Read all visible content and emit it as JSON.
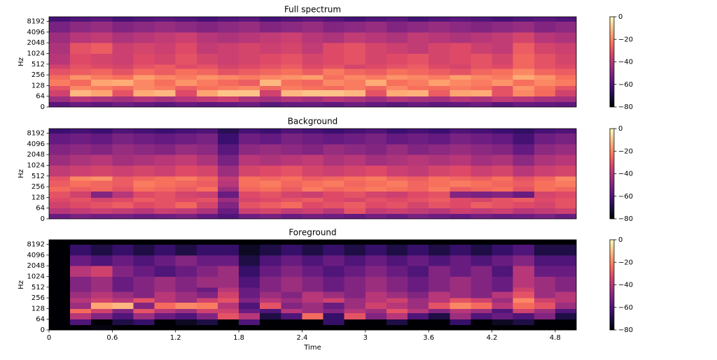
{
  "chart_data": [
    {
      "type": "heatmap",
      "title": "Full spectrum",
      "ylabel": "Hz",
      "yscale": "symlog",
      "colormap": "magma",
      "time_bins": [
        0,
        0.2,
        0.4,
        0.6,
        0.8,
        1.0,
        1.2,
        1.4,
        1.6,
        1.8,
        2.0,
        2.2,
        2.4,
        2.6,
        2.8,
        3.0,
        3.2,
        3.4,
        3.6,
        3.8,
        4.0,
        4.2,
        4.4,
        4.6,
        4.8,
        5.0
      ],
      "freq_bins": [
        0,
        32,
        64,
        96,
        128,
        192,
        256,
        384,
        512,
        1024,
        2048,
        4096,
        8192,
        11025
      ],
      "z": [
        [
          -58,
          -55,
          -57,
          -54,
          -56,
          -58,
          -55,
          -57,
          -56,
          -54,
          -58,
          -56,
          -55,
          -57,
          -54,
          -56,
          -58,
          -55,
          -57,
          -56,
          -54,
          -58,
          -55,
          -56,
          -57
        ],
        [
          -45,
          -40,
          -42,
          -44,
          -41,
          -43,
          -40,
          -38,
          -36,
          -42,
          -44,
          -41,
          -43,
          -40,
          -42,
          -45,
          -41,
          -43,
          -44,
          -40,
          -42,
          -38,
          -40,
          -43,
          -44
        ],
        [
          -35,
          -12,
          -15,
          -30,
          -14,
          -12,
          -32,
          -15,
          -10,
          -10,
          -35,
          -12,
          -10,
          -10,
          -12,
          -30,
          -14,
          -13,
          -28,
          -15,
          -14,
          -30,
          -20,
          -25,
          -35
        ],
        [
          -30,
          -20,
          -22,
          -25,
          -20,
          -22,
          -28,
          -24,
          -22,
          -20,
          -26,
          -22,
          -24,
          -25,
          -22,
          -26,
          -20,
          -24,
          -25,
          -22,
          -24,
          -30,
          -18,
          -24,
          -30
        ],
        [
          -22,
          -25,
          -15,
          -14,
          -20,
          -24,
          -18,
          -22,
          -25,
          -28,
          -12,
          -24,
          -26,
          -20,
          -22,
          -14,
          -24,
          -22,
          -16,
          -20,
          -22,
          -18,
          -24,
          -20,
          -22
        ],
        [
          -25,
          -18,
          -22,
          -24,
          -16,
          -20,
          -22,
          -18,
          -20,
          -22,
          -20,
          -18,
          -16,
          -24,
          -20,
          -22,
          -18,
          -20,
          -22,
          -16,
          -20,
          -22,
          -14,
          -18,
          -24
        ],
        [
          -30,
          -28,
          -26,
          -30,
          -25,
          -28,
          -24,
          -26,
          -30,
          -28,
          -26,
          -24,
          -28,
          -22,
          -26,
          -28,
          -24,
          -26,
          -28,
          -30,
          -26,
          -24,
          -20,
          -26,
          -28
        ],
        [
          -35,
          -30,
          -32,
          -34,
          -30,
          -28,
          -32,
          -30,
          -34,
          -32,
          -30,
          -28,
          -32,
          -30,
          -34,
          -32,
          -30,
          -28,
          -32,
          -34,
          -30,
          -32,
          -26,
          -30,
          -32
        ],
        [
          -40,
          -32,
          -34,
          -36,
          -32,
          -34,
          -30,
          -34,
          -36,
          -34,
          -32,
          -30,
          -34,
          -32,
          -30,
          -34,
          -32,
          -30,
          -34,
          -32,
          -30,
          -34,
          -26,
          -30,
          -34
        ],
        [
          -42,
          -30,
          -28,
          -36,
          -34,
          -36,
          -32,
          -38,
          -36,
          -34,
          -36,
          -34,
          -38,
          -32,
          -30,
          -34,
          -36,
          -38,
          -34,
          -32,
          -36,
          -38,
          -28,
          -34,
          -36
        ],
        [
          -45,
          -40,
          -38,
          -42,
          -40,
          -38,
          -36,
          -40,
          -42,
          -40,
          -38,
          -36,
          -40,
          -42,
          -38,
          -40,
          -42,
          -38,
          -40,
          -42,
          -40,
          -38,
          -34,
          -40,
          -42
        ],
        [
          -52,
          -48,
          -46,
          -50,
          -48,
          -46,
          -48,
          -50,
          -48,
          -46,
          -50,
          -48,
          -46,
          -50,
          -48,
          -46,
          -50,
          -48,
          -46,
          -48,
          -50,
          -48,
          -46,
          -50,
          -48
        ],
        [
          -62,
          -60,
          -58,
          -62,
          -60,
          -58,
          -60,
          -62,
          -60,
          -58,
          -62,
          -60,
          -58,
          -60,
          -62,
          -60,
          -58,
          -62,
          -60,
          -58,
          -60,
          -62,
          -60,
          -58,
          -60
        ]
      ],
      "xlim": [
        0,
        5.0
      ],
      "ylim": [
        0,
        11025
      ],
      "yticks": [
        0,
        64,
        128,
        256,
        512,
        1024,
        2048,
        4096,
        8192
      ],
      "clim": [
        -80,
        0
      ],
      "colorbar_ticks": [
        0,
        {
          "value": -20,
          "label": "−20"
        },
        {
          "value": -40,
          "label": "−40"
        },
        {
          "value": -60,
          "label": "−60"
        },
        {
          "value": -80,
          "label": "−80"
        }
      ]
    },
    {
      "type": "heatmap",
      "title": "Background",
      "ylabel": "Hz",
      "yscale": "symlog",
      "colormap": "magma",
      "time_bins": [
        0,
        0.2,
        0.4,
        0.6,
        0.8,
        1.0,
        1.2,
        1.4,
        1.6,
        1.8,
        2.0,
        2.2,
        2.4,
        2.6,
        2.8,
        3.0,
        3.2,
        3.4,
        3.6,
        3.8,
        4.0,
        4.2,
        4.4,
        4.6,
        4.8,
        5.0
      ],
      "freq_bins": [
        0,
        32,
        64,
        96,
        128,
        192,
        256,
        384,
        512,
        1024,
        2048,
        4096,
        8192,
        11025
      ],
      "z": [
        [
          -55,
          -52,
          -54,
          -53,
          -55,
          -54,
          -52,
          -56,
          -60,
          -54,
          -52,
          -55,
          -53,
          -54,
          -56,
          -53,
          -55,
          -52,
          -54,
          -56,
          -53,
          -55,
          -54,
          -52,
          -55
        ],
        [
          -40,
          -38,
          -36,
          -38,
          -40,
          -36,
          -38,
          -42,
          -55,
          -36,
          -34,
          -38,
          -36,
          -40,
          -30,
          -38,
          -36,
          -38,
          -40,
          -36,
          -38,
          -36,
          -40,
          -38,
          -36
        ],
        [
          -35,
          -32,
          -30,
          -28,
          -32,
          -30,
          -26,
          -34,
          -50,
          -30,
          -28,
          -25,
          -32,
          -30,
          -28,
          -32,
          -30,
          -34,
          -30,
          -32,
          -28,
          -30,
          -32,
          -34,
          -30
        ],
        [
          -32,
          -30,
          -34,
          -32,
          -28,
          -30,
          -32,
          -30,
          -45,
          -34,
          -32,
          -30,
          -28,
          -32,
          -34,
          -30,
          -32,
          -30,
          -28,
          -32,
          -34,
          -30,
          -28,
          -32,
          -30
        ],
        [
          -30,
          -35,
          -50,
          -40,
          -32,
          -30,
          -34,
          -36,
          -55,
          -32,
          -30,
          -34,
          -36,
          -32,
          -30,
          -34,
          -36,
          -32,
          -30,
          -50,
          -52,
          -50,
          -55,
          -34,
          -32
        ],
        [
          -25,
          -28,
          -26,
          -30,
          -24,
          -26,
          -28,
          -24,
          -45,
          -26,
          -24,
          -28,
          -22,
          -26,
          -24,
          -22,
          -24,
          -26,
          -22,
          -28,
          -26,
          -24,
          -30,
          -24,
          -26
        ],
        [
          -28,
          -24,
          -26,
          -28,
          -22,
          -24,
          -26,
          -28,
          -40,
          -24,
          -22,
          -26,
          -24,
          -22,
          -26,
          -24,
          -22,
          -26,
          -24,
          -22,
          -24,
          -26,
          -28,
          -24,
          -22
        ],
        [
          -30,
          -20,
          -18,
          -28,
          -26,
          -24,
          -22,
          -26,
          -38,
          -24,
          -26,
          -24,
          -28,
          -26,
          -24,
          -22,
          -26,
          -28,
          -24,
          -26,
          -28,
          -24,
          -30,
          -26,
          -20
        ],
        [
          -38,
          -36,
          -34,
          -36,
          -34,
          -36,
          -32,
          -34,
          -45,
          -34,
          -32,
          -30,
          -34,
          -36,
          -34,
          -32,
          -36,
          -38,
          -34,
          -32,
          -36,
          -34,
          -40,
          -36,
          -34
        ],
        [
          -45,
          -42,
          -40,
          -44,
          -42,
          -40,
          -38,
          -42,
          -52,
          -40,
          -42,
          -40,
          -38,
          -42,
          -40,
          -44,
          -42,
          -40,
          -42,
          -40,
          -44,
          -42,
          -48,
          -42,
          -40
        ],
        [
          -50,
          -48,
          -50,
          -46,
          -48,
          -50,
          -46,
          -48,
          -58,
          -48,
          -46,
          -48,
          -50,
          -46,
          -48,
          -50,
          -46,
          -50,
          -48,
          -46,
          -48,
          -50,
          -56,
          -48,
          -46
        ],
        [
          -56,
          -54,
          -56,
          -52,
          -54,
          -56,
          -54,
          -52,
          -64,
          -54,
          -56,
          -52,
          -54,
          -56,
          -54,
          -52,
          -56,
          -54,
          -56,
          -52,
          -54,
          -56,
          -62,
          -54,
          -52
        ],
        [
          -64,
          -62,
          -64,
          -60,
          -62,
          -64,
          -62,
          -60,
          -68,
          -62,
          -64,
          -60,
          -62,
          -64,
          -62,
          -60,
          -64,
          -62,
          -64,
          -60,
          -62,
          -64,
          -66,
          -62,
          -60
        ]
      ],
      "xlim": [
        0,
        5.0
      ],
      "ylim": [
        0,
        11025
      ],
      "yticks": [
        0,
        64,
        128,
        256,
        512,
        1024,
        2048,
        4096,
        8192
      ],
      "clim": [
        -80,
        0
      ],
      "colorbar_ticks": [
        0,
        {
          "value": -20,
          "label": "−20"
        },
        {
          "value": -40,
          "label": "−40"
        },
        {
          "value": -60,
          "label": "−60"
        },
        {
          "value": -80,
          "label": "−80"
        }
      ]
    },
    {
      "type": "heatmap",
      "title": "Foreground",
      "ylabel": "Hz",
      "xlabel": "Time",
      "yscale": "symlog",
      "colormap": "magma",
      "time_bins": [
        0,
        0.2,
        0.4,
        0.6,
        0.8,
        1.0,
        1.2,
        1.4,
        1.6,
        1.8,
        2.0,
        2.2,
        2.4,
        2.6,
        2.8,
        3.0,
        3.2,
        3.4,
        3.6,
        3.8,
        4.0,
        4.2,
        4.4,
        4.6,
        4.8,
        5.0
      ],
      "freq_bins": [
        0,
        32,
        64,
        96,
        128,
        192,
        256,
        384,
        512,
        1024,
        2048,
        4096,
        8192,
        11025
      ],
      "z": [
        [
          -80,
          -80,
          -78,
          -80,
          -80,
          -80,
          -80,
          -80,
          -80,
          -80,
          -80,
          -80,
          -80,
          -80,
          -80,
          -80,
          -80,
          -80,
          -80,
          -80,
          -80,
          -80,
          -80,
          -80,
          -80
        ],
        [
          -80,
          -60,
          -80,
          -70,
          -65,
          -80,
          -75,
          -70,
          -80,
          -60,
          -80,
          -80,
          -80,
          -65,
          -80,
          -80,
          -70,
          -80,
          -80,
          -65,
          -80,
          -75,
          -70,
          -80,
          -80
        ],
        [
          -80,
          -40,
          -50,
          -60,
          -45,
          -55,
          -60,
          -50,
          -30,
          -40,
          -70,
          -60,
          -25,
          -65,
          -30,
          -50,
          -40,
          -60,
          -70,
          -45,
          -60,
          -55,
          -60,
          -50,
          -70
        ],
        [
          -80,
          -25,
          -35,
          -50,
          -30,
          -40,
          -45,
          -35,
          -35,
          -55,
          -60,
          -40,
          -45,
          -50,
          -40,
          -45,
          -30,
          -40,
          -50,
          -40,
          -45,
          -60,
          -35,
          -45,
          -60
        ],
        [
          -80,
          -45,
          -15,
          -12,
          -50,
          -25,
          -20,
          -22,
          -40,
          -60,
          -30,
          -50,
          -45,
          -55,
          -45,
          -35,
          -40,
          -45,
          -30,
          -20,
          -25,
          -40,
          -25,
          -30,
          -45
        ],
        [
          -80,
          -40,
          -35,
          -40,
          -30,
          -40,
          -45,
          -35,
          -30,
          -50,
          -40,
          -45,
          -40,
          -35,
          -45,
          -40,
          -35,
          -45,
          -40,
          -30,
          -35,
          -45,
          -20,
          -35,
          -40
        ],
        [
          -80,
          -45,
          -40,
          -45,
          -50,
          -40,
          -45,
          -50,
          -35,
          -55,
          -45,
          -50,
          -40,
          -45,
          -50,
          -40,
          -45,
          -50,
          -40,
          -45,
          -50,
          -40,
          -30,
          -45,
          -40
        ],
        [
          -80,
          -50,
          -45,
          -55,
          -50,
          -45,
          -50,
          -55,
          -40,
          -55,
          -50,
          -45,
          -50,
          -55,
          -50,
          -45,
          -50,
          -55,
          -50,
          -45,
          -50,
          -55,
          -35,
          -45,
          -50
        ],
        [
          -80,
          -50,
          -45,
          -55,
          -50,
          -45,
          -50,
          -45,
          -45,
          -60,
          -50,
          -45,
          -50,
          -55,
          -50,
          -45,
          -50,
          -55,
          -50,
          -45,
          -50,
          -55,
          -40,
          -45,
          -50
        ],
        [
          -80,
          -40,
          -35,
          -50,
          -55,
          -60,
          -55,
          -50,
          -45,
          -65,
          -55,
          -50,
          -55,
          -60,
          -55,
          -50,
          -55,
          -60,
          -50,
          -55,
          -50,
          -60,
          -40,
          -55,
          -55
        ],
        [
          -80,
          -55,
          -60,
          -55,
          -60,
          -55,
          -50,
          -55,
          -55,
          -70,
          -60,
          -55,
          -60,
          -55,
          -60,
          -55,
          -60,
          -55,
          -60,
          -55,
          -60,
          -55,
          -50,
          -60,
          -60
        ],
        [
          -80,
          -65,
          -70,
          -65,
          -70,
          -65,
          -70,
          -65,
          -65,
          -75,
          -70,
          -65,
          -70,
          -65,
          -70,
          -65,
          -70,
          -65,
          -70,
          -65,
          -70,
          -65,
          -60,
          -70,
          -70
        ],
        [
          -80,
          -80,
          -80,
          -80,
          -80,
          -80,
          -80,
          -80,
          -80,
          -80,
          -80,
          -80,
          -80,
          -80,
          -80,
          -80,
          -80,
          -80,
          -80,
          -80,
          -80,
          -80,
          -80,
          -80,
          -80
        ]
      ],
      "xlim": [
        0,
        5.0
      ],
      "ylim": [
        0,
        11025
      ],
      "yticks": [
        0,
        64,
        128,
        256,
        512,
        1024,
        2048,
        4096,
        8192
      ],
      "xticks": [
        0,
        0.6,
        1.2,
        1.8,
        2.4,
        3,
        3.6,
        4.2,
        4.8
      ],
      "clim": [
        -80,
        0
      ],
      "colorbar_ticks": [
        0,
        {
          "value": -20,
          "label": "−20"
        },
        {
          "value": -40,
          "label": "−40"
        },
        {
          "value": -60,
          "label": "−60"
        },
        {
          "value": -80,
          "label": "−80"
        }
      ]
    }
  ]
}
